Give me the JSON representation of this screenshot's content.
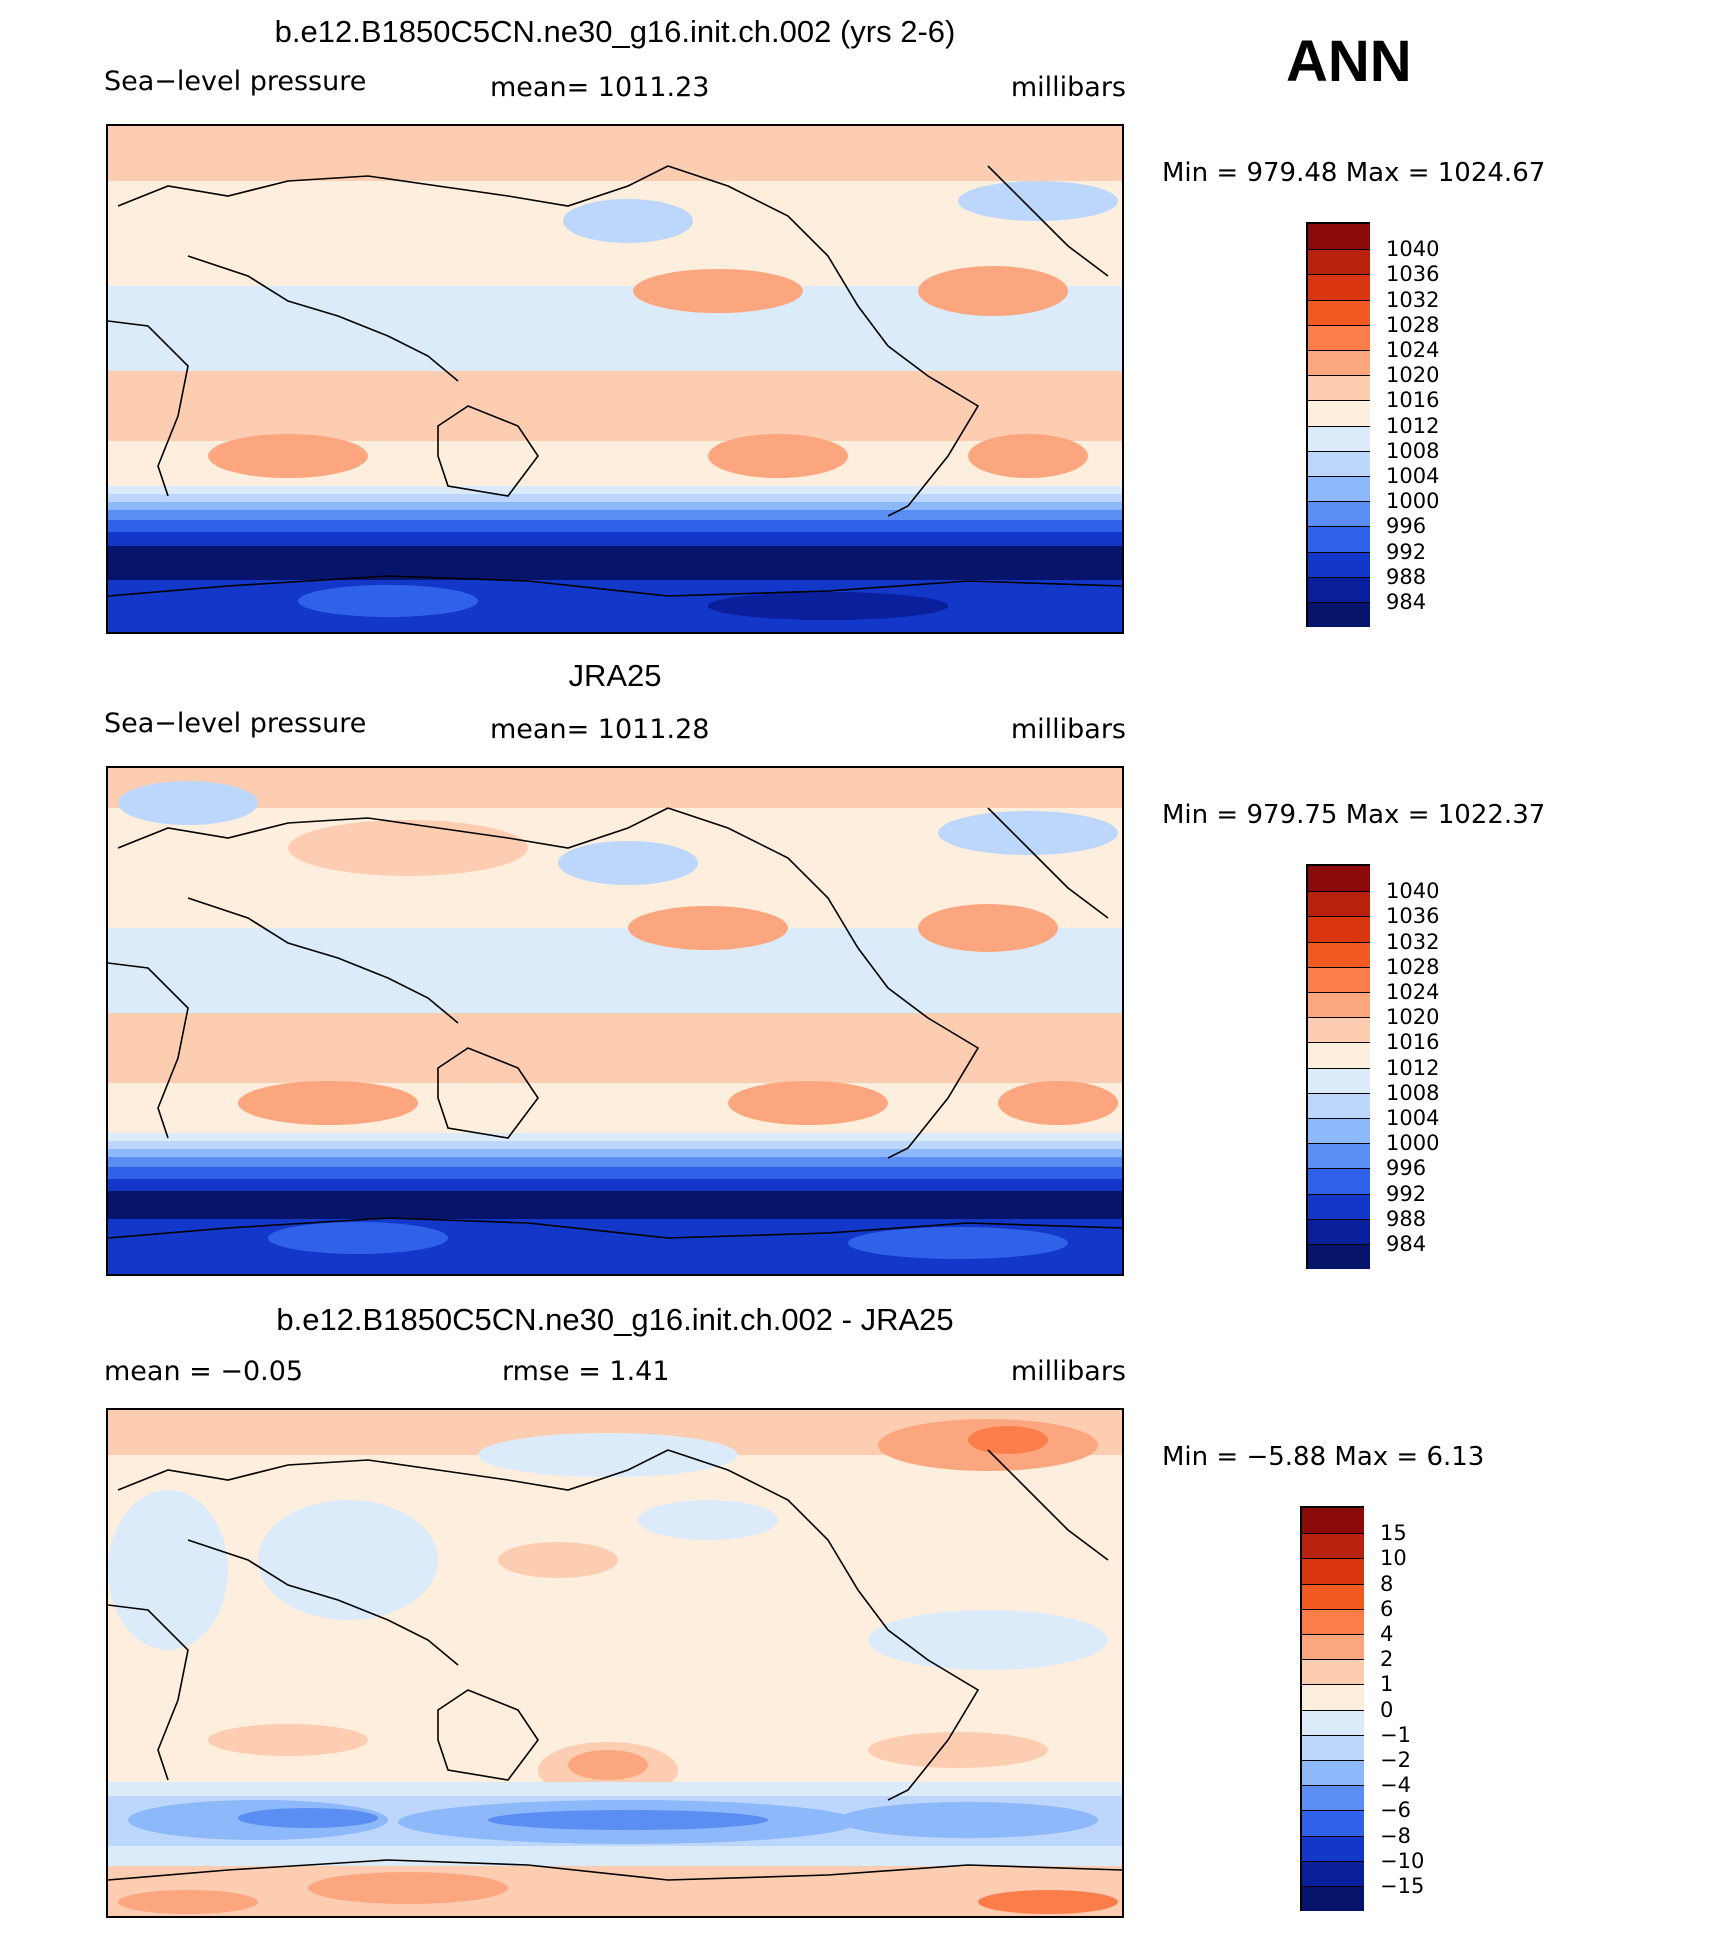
{
  "header": {
    "season": "ANN"
  },
  "panels": [
    {
      "title": "b.e12.B1850C5CN.ne30_g16.init.ch.002 (yrs 2-6)",
      "left_label": "Sea−level pressure",
      "center_label": "mean=  1011.23",
      "right_label": "millibars",
      "minmax": "Min  =  979.48  Max  =  1024.67",
      "legend_key": "abs"
    },
    {
      "title": "JRA25",
      "left_label": "Sea−level pressure",
      "center_label": "mean=  1011.28",
      "right_label": "millibars",
      "minmax": "Min  =  979.75  Max  =  1022.37",
      "legend_key": "abs"
    },
    {
      "title": "b.e12.B1850C5CN.ne30_g16.init.ch.002 - JRA25",
      "left_label": "mean  =     −0.05",
      "center_label": "rmse  =     1.41",
      "right_label": "millibars",
      "minmax": "Min  =    −5.88  Max  =     6.13",
      "legend_key": "diff"
    }
  ],
  "legends": {
    "abs": {
      "levels": [
        "1040",
        "1036",
        "1032",
        "1028",
        "1024",
        "1020",
        "1016",
        "1012",
        "1008",
        "1004",
        "1000",
        "996",
        "992",
        "988",
        "984"
      ],
      "colors": [
        "#8b0a0a",
        "#b8210e",
        "#d9350f",
        "#f25a24",
        "#fb7e4a",
        "#fba67f",
        "#fdcdb2",
        "#fdeedd",
        "#dcebfa",
        "#bcd7fb",
        "#8db8fa",
        "#5a8ef2",
        "#2f62e8",
        "#1237c9",
        "#0a1f9c",
        "#06146b"
      ]
    },
    "diff": {
      "levels": [
        "15",
        "10",
        "8",
        "6",
        "4",
        "2",
        "1",
        "0",
        "−1",
        "−2",
        "−4",
        "−6",
        "−8",
        "−10",
        "−15"
      ],
      "colors": [
        "#8b0a0a",
        "#b8210e",
        "#d9350f",
        "#f25a24",
        "#fb7e4a",
        "#fba67f",
        "#fdcdb2",
        "#fdeedd",
        "#dcebfa",
        "#bcd7fb",
        "#8db8fa",
        "#5a8ef2",
        "#2f62e8",
        "#1237c9",
        "#0a1f9c",
        "#06146b"
      ]
    }
  }
}
